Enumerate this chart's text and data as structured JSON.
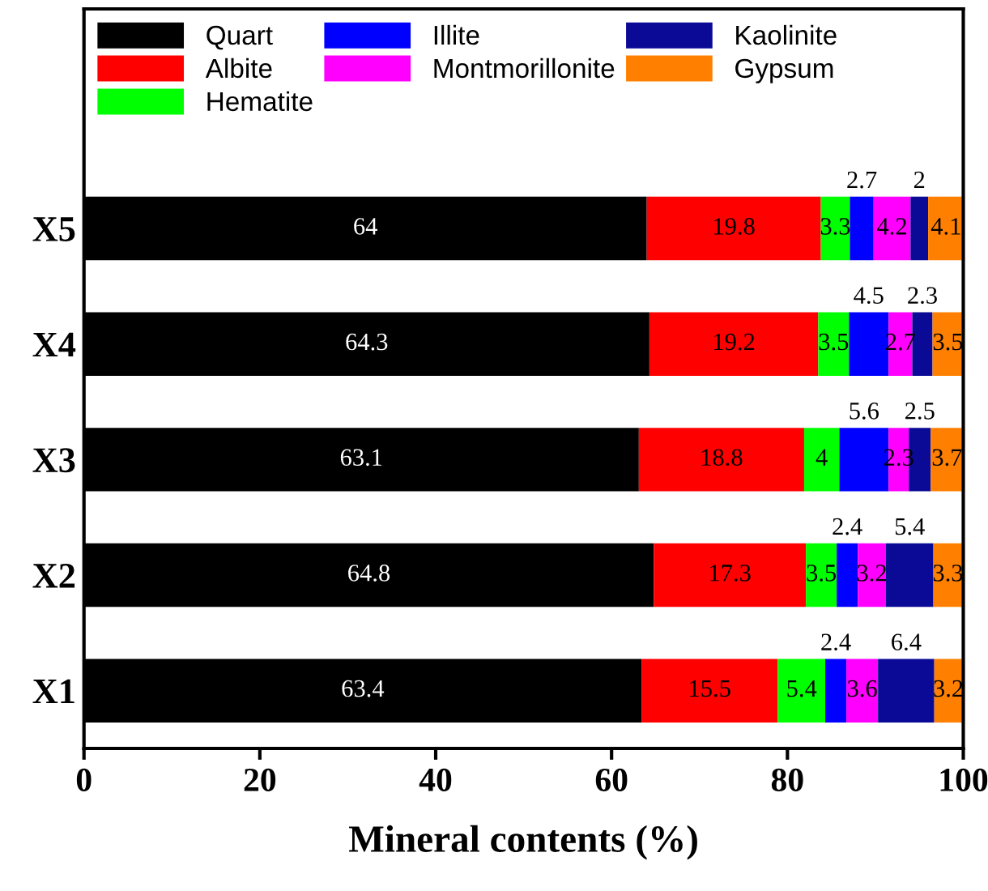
{
  "chart_data": {
    "type": "bar",
    "orientation": "horizontal",
    "stacked": true,
    "xlabel": "Mineral contents (%)",
    "categories": [
      "X5",
      "X4",
      "X3",
      "X2",
      "X1"
    ],
    "series": [
      {
        "name": "Quart",
        "color": "#000000",
        "values": [
          64,
          64.3,
          63.1,
          64.8,
          63.4
        ]
      },
      {
        "name": "Albite",
        "color": "#ff0000",
        "values": [
          19.8,
          19.2,
          18.8,
          17.3,
          15.5
        ]
      },
      {
        "name": "Hematite",
        "color": "#00ff00",
        "values": [
          3.3,
          3.5,
          4,
          3.5,
          5.4
        ]
      },
      {
        "name": "Illite",
        "color": "#0000ff",
        "values": [
          2.7,
          4.5,
          5.6,
          2.4,
          2.4
        ]
      },
      {
        "name": "Montmorillonite",
        "color": "#ff00ff",
        "values": [
          4.2,
          2.7,
          2.3,
          3.2,
          3.6
        ]
      },
      {
        "name": "Kaolinite",
        "color": "#0a0a96",
        "values": [
          2,
          2.3,
          2.5,
          5.4,
          6.4
        ]
      },
      {
        "name": "Gypsum",
        "color": "#ff8000",
        "values": [
          4.1,
          3.5,
          3.7,
          3.3,
          3.2
        ]
      }
    ],
    "xlim": [
      0,
      100
    ],
    "xticks": [
      0,
      20,
      40,
      60,
      80,
      100
    ],
    "data_labels": true,
    "legend": "top",
    "grid": false
  }
}
